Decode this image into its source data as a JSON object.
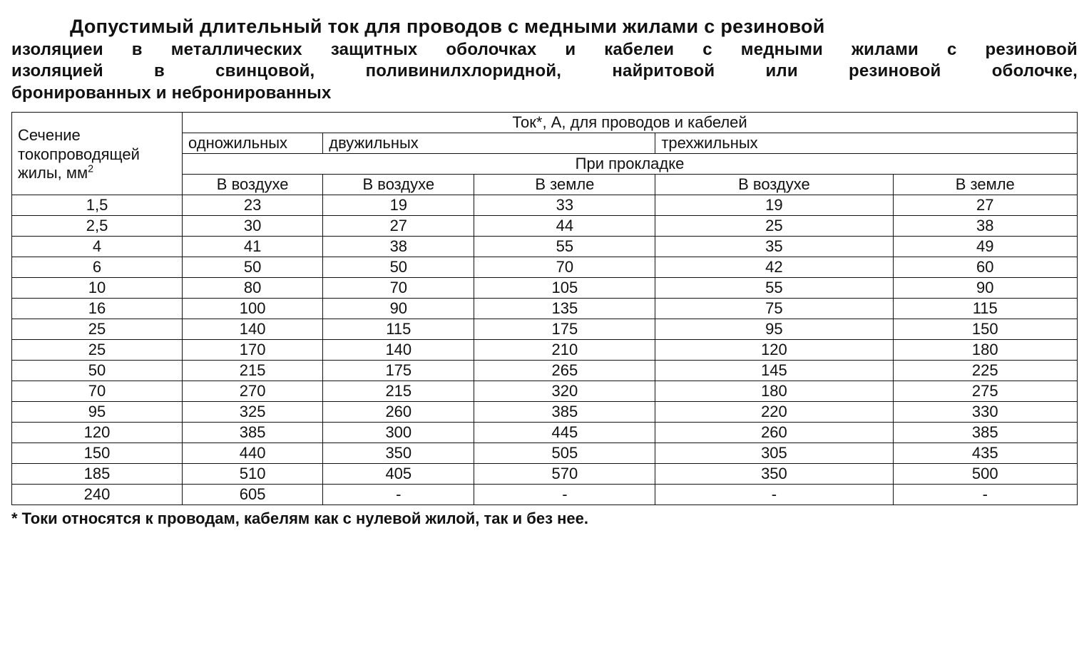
{
  "title": {
    "line1": "Допустимый  длительный  ток  для  проводов  с  медными  жилами  с  резиновой",
    "line2": "изоляциеи в металлических защитных оболочках и кабелеи с медными жилами с резиновой",
    "line3": "изоляцией в свинцовой, поливинилхлоридной, найритовой или резиновой оболочке,",
    "line4": "бронированных и небронированных"
  },
  "table": {
    "type": "table",
    "colWidthsPct": [
      16,
      13.2,
      14.2,
      17,
      22.3,
      17.3
    ],
    "border_color": "#111111",
    "background_color": "#ffffff",
    "text_color": "#111111",
    "font_family": "Arial",
    "font_size_pt": 16,
    "header": {
      "corner_prefix": "Сечение токопроводящей жилы, мм",
      "corner_sup": "2",
      "group_top": "Ток*, А, для проводов и кабелей",
      "group_single": "одножильных",
      "group_double": "двужильных",
      "group_triple": "трехжильных",
      "installation": "При прокладке",
      "air": "В воздухе",
      "ground": "В земле"
    },
    "columns": [
      "section",
      "oneAir",
      "twoAir",
      "twoGround",
      "threeAir",
      "threeGround"
    ],
    "rows": [
      [
        "1,5",
        "23",
        "19",
        "33",
        "19",
        "27"
      ],
      [
        "2,5",
        "30",
        "27",
        "44",
        "25",
        "38"
      ],
      [
        "4",
        "41",
        "38",
        "55",
        "35",
        "49"
      ],
      [
        "6",
        "50",
        "50",
        "70",
        "42",
        "60"
      ],
      [
        "10",
        "80",
        "70",
        "105",
        "55",
        "90"
      ],
      [
        "16",
        "100",
        "90",
        "135",
        "75",
        "115"
      ],
      [
        "25",
        "140",
        "115",
        "175",
        "95",
        "150"
      ],
      [
        "25",
        "170",
        "140",
        "210",
        "120",
        "180"
      ],
      [
        "50",
        "215",
        "175",
        "265",
        "145",
        "225"
      ],
      [
        "70",
        "270",
        "215",
        "320",
        "180",
        "275"
      ],
      [
        "95",
        "325",
        "260",
        "385",
        "220",
        "330"
      ],
      [
        "120",
        "385",
        "300",
        "445",
        "260",
        "385"
      ],
      [
        "150",
        "440",
        "350",
        "505",
        "305",
        "435"
      ],
      [
        "185",
        "510",
        "405",
        "570",
        "350",
        "500"
      ],
      [
        "240",
        "605",
        "-",
        "-",
        "-",
        "-"
      ]
    ]
  },
  "footnote": "* Токи относятся к проводам, кабелям как с нулевой жилой, так и без нее."
}
